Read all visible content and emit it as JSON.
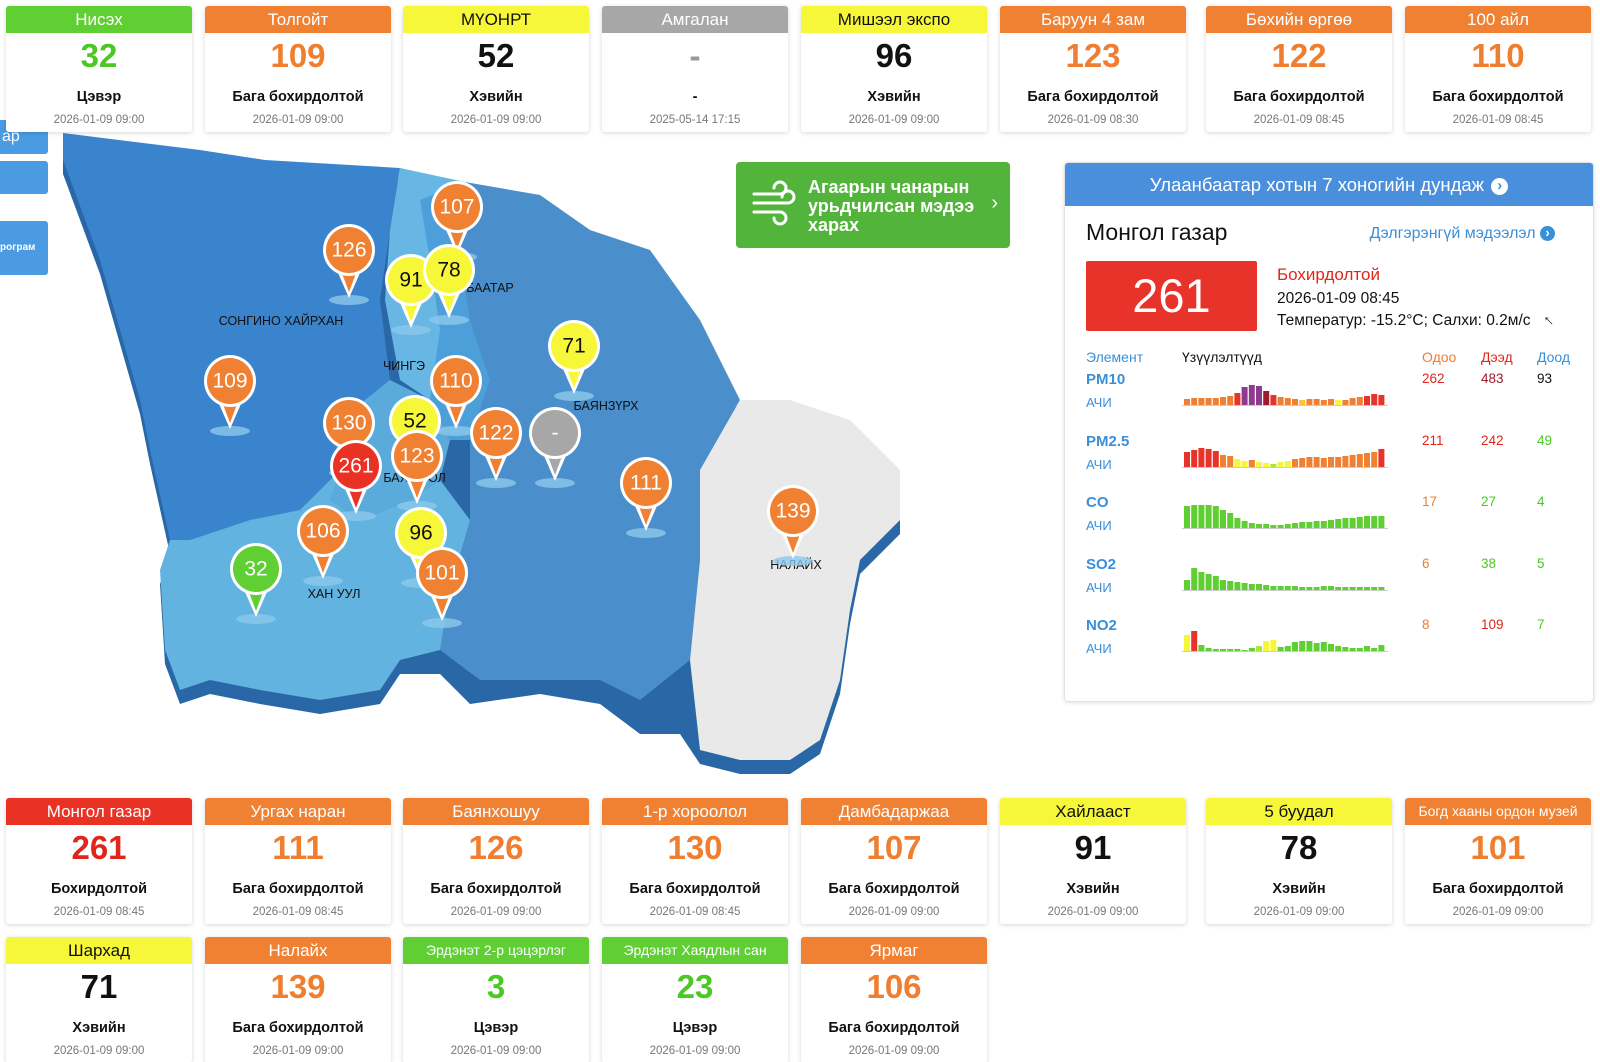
{
  "top_cards": [
    {
      "name": "Нисэх",
      "value": "32",
      "status": "Цэвэр",
      "time": "2026-01-09 09:00",
      "color": "green"
    },
    {
      "name": "Толгойт",
      "value": "109",
      "status": "Бага бохирдолтой",
      "time": "2026-01-09 09:00",
      "color": "orange"
    },
    {
      "name": "МҮОНРТ",
      "value": "52",
      "status": "Хэвийн",
      "time": "2026-01-09 09:00",
      "color": "yellow"
    },
    {
      "name": "Амгалан",
      "value": "-",
      "status": "-",
      "time": "2025-05-14 17:15",
      "color": "gray"
    },
    {
      "name": "Мишээл экспо",
      "value": "96",
      "status": "Хэвийн",
      "time": "2026-01-09 09:00",
      "color": "yellow"
    },
    {
      "name": "Баруун 4 зам",
      "value": "123",
      "status": "Бага бохирдолтой",
      "time": "2026-01-09 08:30",
      "color": "orange"
    },
    {
      "name": "Бөхийн өргөө",
      "value": "122",
      "status": "Бага бохирдолтой",
      "time": "2026-01-09 08:45",
      "color": "orange"
    },
    {
      "name": "100 айл",
      "value": "110",
      "status": "Бага бохирдолтой",
      "time": "2026-01-09 08:45",
      "color": "orange"
    }
  ],
  "bottom_cards_row1": [
    {
      "name": "Монгол газар",
      "value": "261",
      "status": "Бохирдолтой",
      "time": "2026-01-09 08:45",
      "color": "red"
    },
    {
      "name": "Ургах наран",
      "value": "111",
      "status": "Бага бохирдолтой",
      "time": "2026-01-09 08:45",
      "color": "orange"
    },
    {
      "name": "Баянхошуу",
      "value": "126",
      "status": "Бага бохирдолтой",
      "time": "2026-01-09 09:00",
      "color": "orange"
    },
    {
      "name": "1-р хороолол",
      "value": "130",
      "status": "Бага бохирдолтой",
      "time": "2026-01-09 08:45",
      "color": "orange"
    },
    {
      "name": "Дамбадаржаа",
      "value": "107",
      "status": "Бага бохирдолтой",
      "time": "2026-01-09 09:00",
      "color": "orange"
    },
    {
      "name": "Хайлааст",
      "value": "91",
      "status": "Хэвийн",
      "time": "2026-01-09 09:00",
      "color": "yellow"
    },
    {
      "name": "5 буудал",
      "value": "78",
      "status": "Хэвийн",
      "time": "2026-01-09 09:00",
      "color": "yellow"
    },
    {
      "name": "Богд хааны ордон музей",
      "value": "101",
      "status": "Бага бохирдолтой",
      "time": "2026-01-09 09:00",
      "color": "orange"
    }
  ],
  "bottom_cards_row2": [
    {
      "name": "Шархад",
      "value": "71",
      "status": "Хэвийн",
      "time": "2026-01-09 09:00",
      "color": "yellow"
    },
    {
      "name": "Налайх",
      "value": "139",
      "status": "Бага бохирдолтой",
      "time": "2026-01-09 09:00",
      "color": "orange"
    },
    {
      "name": "Эрдэнэт 2-р цэцэрлэг",
      "value": "3",
      "status": "Цэвэр",
      "time": "2026-01-09 09:00",
      "color": "green"
    },
    {
      "name": "Эрдэнэт Хаядлын сан",
      "value": "23",
      "status": "Цэвэр",
      "time": "2026-01-09 09:00",
      "color": "green"
    },
    {
      "name": "Ярмаг",
      "value": "106",
      "status": "Бага бохирдолтой",
      "time": "2026-01-09 09:00",
      "color": "orange"
    }
  ],
  "side_tabs": [
    "ар",
    "",
    "рограм"
  ],
  "map": {
    "districts": [
      "СОНГИНО ХАЙРХАН",
      "ЧИНГЭ",
      "БАЯНЗҮРХ",
      "БАЯ",
      "ОЛ",
      "ХАН УУЛ",
      "НАЛАЙХ",
      "БААТАР"
    ],
    "pins": [
      {
        "value": "107",
        "color": "orange"
      },
      {
        "value": "126",
        "color": "orange"
      },
      {
        "value": "91",
        "color": "yellow"
      },
      {
        "value": "78",
        "color": "yellow"
      },
      {
        "value": "71",
        "color": "yellow"
      },
      {
        "value": "109",
        "color": "orange"
      },
      {
        "value": "110",
        "color": "orange"
      },
      {
        "value": "130",
        "color": "orange"
      },
      {
        "value": "52",
        "color": "yellow"
      },
      {
        "value": "122",
        "color": "orange"
      },
      {
        "value": "-",
        "color": "gray"
      },
      {
        "value": "123",
        "color": "orange"
      },
      {
        "value": "261",
        "color": "red"
      },
      {
        "value": "111",
        "color": "orange"
      },
      {
        "value": "139",
        "color": "orange"
      },
      {
        "value": "106",
        "color": "orange"
      },
      {
        "value": "96",
        "color": "yellow"
      },
      {
        "value": "32",
        "color": "green"
      },
      {
        "value": "101",
        "color": "orange"
      }
    ]
  },
  "forecast_button": {
    "label": "Агаарын чанарын урьдчилсан мэдээ харах",
    "icon": "wind-icon"
  },
  "panel": {
    "header": "Улаанбаатар хотын 7 хоногийн дундаж",
    "station": "Монгол газар",
    "more_link": "Дэлгэрэнгүй мэдээлэл",
    "aqi": "261",
    "status": "Бохирдолтой",
    "time": "2026-01-09 08:45",
    "weather": "Температур: -15.2°C; Салхи: 0.2м/с",
    "col_element": "Элемент",
    "col_indicators": "Үзүүлэлтүүд",
    "col_now": "Одоо",
    "col_high": "Дээд",
    "col_low": "Доод",
    "pollutants": [
      {
        "name": "PM10",
        "unit": "АЧИ",
        "now": "262",
        "high": "483",
        "low": "93"
      },
      {
        "name": "PM2.5",
        "unit": "АЧИ",
        "now": "211",
        "high": "242",
        "low": "49"
      },
      {
        "name": "CO",
        "unit": "АЧИ",
        "now": "17",
        "high": "27",
        "low": "4"
      },
      {
        "name": "SO2",
        "unit": "АЧИ",
        "now": "6",
        "high": "38",
        "low": "5"
      },
      {
        "name": "NO2",
        "unit": "АЧИ",
        "now": "8",
        "high": "109",
        "low": "7"
      }
    ]
  },
  "colors": {
    "green": "#5fcf34",
    "orange": "#f08133",
    "yellow": "#f7f739",
    "gray": "#a7a7a7",
    "red": "#ea3224",
    "blue": "#4a8fdb"
  }
}
